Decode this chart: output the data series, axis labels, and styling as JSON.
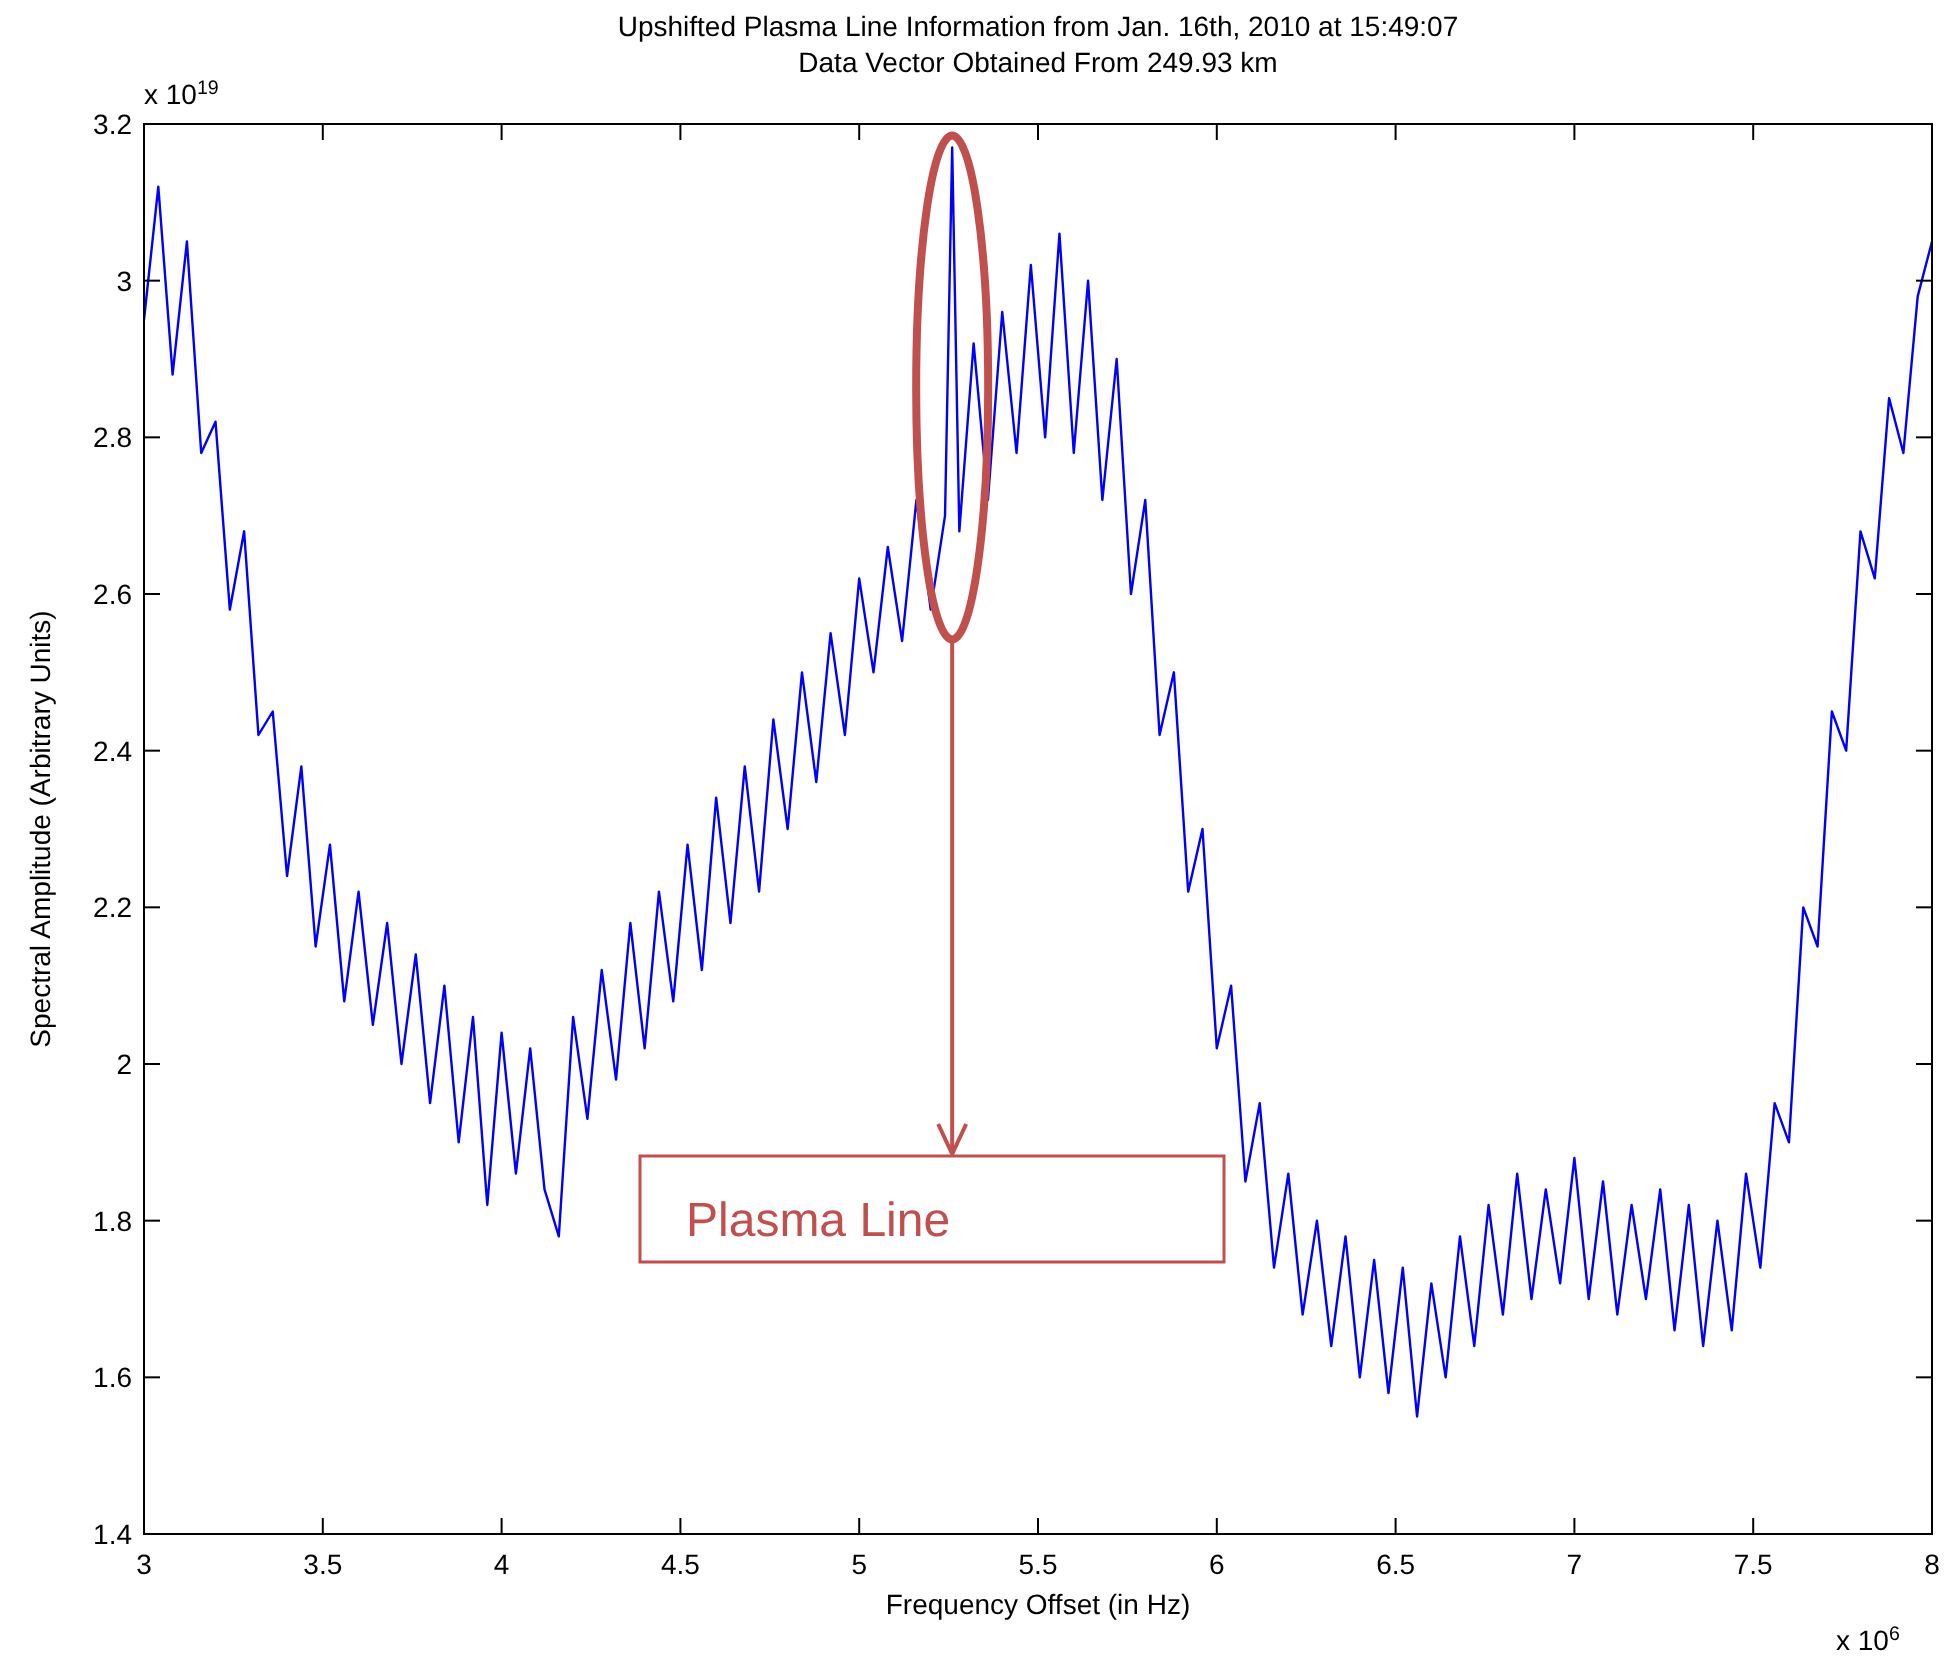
{
  "chart_data": {
    "type": "line",
    "title": "Upshifted Plasma Line Information from Jan. 16th, 2010 at 15:49:07",
    "subtitle": "Data Vector Obtained From 249.93 km",
    "xlabel": "Frequency Offset (in Hz)",
    "ylabel": "Spectral Amplitude (Arbitrary Units)",
    "annotations": [
      "x 10$^{19}$",
      "x 10$^{6}$",
      "Plasma Line"
    ],
    "xlim": [
      3,
      8
    ],
    "xticks": [
      3,
      3.5,
      4,
      4.5,
      5,
      5.5,
      6,
      6.5,
      7,
      7.5,
      8
    ],
    "ylim": [
      1.4,
      3.2
    ],
    "yticks": [
      1.4,
      1.6,
      1.8,
      2,
      2.2,
      2.4,
      2.6,
      2.8,
      3,
      3.2
    ],
    "grid": false,
    "line_style": "solid",
    "series": [
      {
        "color": "#0000ff",
        "x": [
          3.0,
          3.04,
          3.08,
          3.12,
          3.16,
          3.2,
          3.24,
          3.28,
          3.32,
          3.36,
          3.4,
          3.44,
          3.48,
          3.52,
          3.56,
          3.6,
          3.64,
          3.68,
          3.72,
          3.76,
          3.8,
          3.84,
          3.88,
          3.92,
          3.96,
          4.0,
          4.04,
          4.08,
          4.12,
          4.16,
          4.2,
          4.24,
          4.28,
          4.32,
          4.36,
          4.4,
          4.44,
          4.48,
          4.52,
          4.56,
          4.6,
          4.64,
          4.68,
          4.72,
          4.76,
          4.8,
          4.84,
          4.88,
          4.92,
          4.96,
          5.0,
          5.04,
          5.08,
          5.12,
          5.16,
          5.2,
          5.24,
          5.26,
          5.28,
          5.32,
          5.36,
          5.4,
          5.44,
          5.48,
          5.52,
          5.56,
          5.6,
          5.64,
          5.68,
          5.72,
          5.76,
          5.8,
          5.84,
          5.88,
          5.92,
          5.96,
          6.0,
          6.04,
          6.08,
          6.12,
          6.16,
          6.2,
          6.24,
          6.28,
          6.32,
          6.36,
          6.4,
          6.44,
          6.48,
          6.52,
          6.56,
          6.6,
          6.64,
          6.68,
          6.72,
          6.76,
          6.8,
          6.84,
          6.88,
          6.92,
          6.96,
          7.0,
          7.04,
          7.08,
          7.12,
          7.16,
          7.2,
          7.24,
          7.28,
          7.32,
          7.36,
          7.4,
          7.44,
          7.48,
          7.52,
          7.56,
          7.6,
          7.64,
          7.68,
          7.72,
          7.76,
          7.8,
          7.84,
          7.88,
          7.92,
          7.96,
          8.0
        ],
        "values": [
          2.95,
          3.12,
          2.88,
          3.05,
          2.78,
          2.82,
          2.58,
          2.68,
          2.42,
          2.45,
          2.24,
          2.38,
          2.15,
          2.28,
          2.08,
          2.22,
          2.05,
          2.18,
          2.0,
          2.14,
          1.95,
          2.1,
          1.9,
          2.06,
          1.82,
          2.04,
          1.86,
          2.02,
          1.84,
          1.78,
          2.06,
          1.93,
          2.12,
          1.98,
          2.18,
          2.02,
          2.22,
          2.08,
          2.28,
          2.12,
          2.34,
          2.18,
          2.38,
          2.22,
          2.44,
          2.3,
          2.5,
          2.36,
          2.55,
          2.42,
          2.62,
          2.5,
          2.66,
          2.54,
          2.72,
          2.58,
          2.7,
          3.17,
          2.68,
          2.92,
          2.72,
          2.96,
          2.78,
          3.02,
          2.8,
          3.06,
          2.78,
          3.0,
          2.72,
          2.9,
          2.6,
          2.72,
          2.42,
          2.5,
          2.22,
          2.3,
          2.02,
          2.1,
          1.85,
          1.95,
          1.74,
          1.86,
          1.68,
          1.8,
          1.64,
          1.78,
          1.6,
          1.75,
          1.58,
          1.74,
          1.55,
          1.72,
          1.6,
          1.78,
          1.64,
          1.82,
          1.68,
          1.86,
          1.7,
          1.84,
          1.72,
          1.88,
          1.7,
          1.85,
          1.68,
          1.82,
          1.7,
          1.84,
          1.66,
          1.82,
          1.64,
          1.8,
          1.66,
          1.86,
          1.74,
          1.95,
          1.9,
          2.2,
          2.15,
          2.45,
          2.4,
          2.68,
          2.62,
          2.85,
          2.78,
          2.98,
          3.05
        ]
      }
    ]
  }
}
